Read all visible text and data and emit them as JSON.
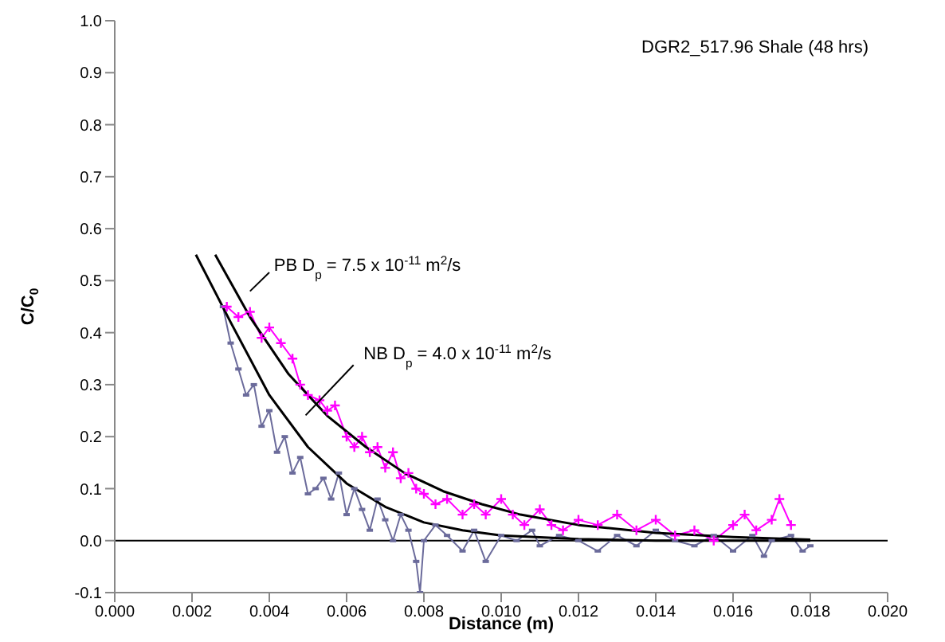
{
  "chart_data": {
    "type": "line",
    "xlabel": "Distance (m)",
    "ylabel": "C/C$_{0}$",
    "annotations": [
      "DGR2_517.96 Shale (48 hrs)",
      "PB D$_{p}$ = 7.5 x 10$^{-11}$ m$^{2}$/s",
      "NB D$_{p}$ = 4.0 x 10$^{-11}$ m$^{2}$/s"
    ],
    "xlim": [
      0,
      0.02
    ],
    "ylim": [
      -0.1,
      1.0
    ],
    "xticks": [
      {
        "value": 0,
        "label": "0.000"
      },
      {
        "value": 0.002,
        "label": "0.002"
      },
      {
        "value": 0.004,
        "label": "0.004"
      },
      {
        "value": 0.006,
        "label": "0.006"
      },
      {
        "value": 0.008,
        "label": "0.008"
      },
      {
        "value": 0.01,
        "label": "0.010"
      },
      {
        "value": 0.012,
        "label": "0.012"
      },
      {
        "value": 0.014,
        "label": "0.014"
      },
      {
        "value": 0.016,
        "label": "0.016"
      },
      {
        "value": 0.018,
        "label": "0.018"
      },
      {
        "value": 0.02,
        "label": "0.020"
      }
    ],
    "yticks": [
      -0.1,
      {
        "value": 0,
        "label": "0.0"
      },
      0.1,
      0.2,
      0.3,
      0.4,
      0.5,
      0.6,
      0.7,
      0.8,
      0.9,
      {
        "value": 1,
        "label": "1.0"
      }
    ],
    "grid": false,
    "legend": false,
    "ref_lines": [
      {
        "axis": "y",
        "value": 0,
        "color": "#000000"
      }
    ],
    "series": [
      {
        "color": "#6b6b9b",
        "marker": "square",
        "x": [
          0.0028,
          0.003,
          0.0032,
          0.0034,
          0.0036,
          0.0038,
          0.004,
          0.0042,
          0.0044,
          0.0046,
          0.0048,
          0.005,
          0.0052,
          0.0054,
          0.0056,
          0.0058,
          0.006,
          0.0062,
          0.0064,
          0.0066,
          0.0068,
          0.007,
          0.0072,
          0.0074,
          0.0076,
          0.0078,
          0.0079,
          0.008,
          0.0083,
          0.0086,
          0.009,
          0.0093,
          0.0096,
          0.01,
          0.0104,
          0.0108,
          0.011,
          0.0115,
          0.012,
          0.0125,
          0.013,
          0.0135,
          0.014,
          0.0145,
          0.015,
          0.0155,
          0.016,
          0.0165,
          0.0168,
          0.017,
          0.0175,
          0.0178,
          0.018
        ],
        "values": [
          0.45,
          0.38,
          0.33,
          0.28,
          0.3,
          0.22,
          0.25,
          0.17,
          0.2,
          0.13,
          0.16,
          0.09,
          0.1,
          0.12,
          0.08,
          0.13,
          0.05,
          0.1,
          0.06,
          0.02,
          0.08,
          0.04,
          0.0,
          0.05,
          0.02,
          -0.04,
          -0.1,
          0.0,
          0.03,
          0.01,
          -0.02,
          0.02,
          -0.04,
          0.01,
          0.0,
          0.02,
          -0.01,
          0.01,
          0.0,
          -0.02,
          0.01,
          -0.01,
          0.02,
          0.0,
          -0.01,
          0.01,
          -0.02,
          0.01,
          -0.03,
          0.0,
          0.01,
          -0.02,
          -0.01
        ]
      },
      {
        "color": "#ff00ff",
        "marker": "cross",
        "x": [
          0.0029,
          0.0032,
          0.0035,
          0.0038,
          0.004,
          0.0043,
          0.0046,
          0.0048,
          0.005,
          0.0053,
          0.0055,
          0.0057,
          0.006,
          0.0062,
          0.0064,
          0.0066,
          0.0068,
          0.007,
          0.0072,
          0.0074,
          0.0076,
          0.0078,
          0.008,
          0.0083,
          0.0086,
          0.009,
          0.0093,
          0.0096,
          0.01,
          0.0103,
          0.0106,
          0.011,
          0.0113,
          0.0116,
          0.012,
          0.0125,
          0.013,
          0.0135,
          0.014,
          0.0145,
          0.015,
          0.0155,
          0.016,
          0.0163,
          0.0166,
          0.017,
          0.0172,
          0.0175
        ],
        "values": [
          0.45,
          0.43,
          0.44,
          0.39,
          0.41,
          0.38,
          0.35,
          0.3,
          0.28,
          0.27,
          0.25,
          0.26,
          0.2,
          0.18,
          0.2,
          0.17,
          0.18,
          0.14,
          0.17,
          0.12,
          0.13,
          0.1,
          0.09,
          0.07,
          0.08,
          0.05,
          0.07,
          0.05,
          0.08,
          0.05,
          0.03,
          0.06,
          0.03,
          0.02,
          0.04,
          0.03,
          0.05,
          0.02,
          0.04,
          0.01,
          0.02,
          0.0,
          0.03,
          0.05,
          0.02,
          0.04,
          0.08,
          0.03
        ]
      },
      {
        "color": "#000000",
        "marker": "none",
        "x": [
          0.0021,
          0.003,
          0.004,
          0.005,
          0.006,
          0.007,
          0.008,
          0.009,
          0.01,
          0.012,
          0.014,
          0.018
        ],
        "values": [
          0.55,
          0.42,
          0.28,
          0.18,
          0.11,
          0.065,
          0.035,
          0.02,
          0.01,
          0.003,
          0.0,
          0.0
        ]
      },
      {
        "color": "#000000",
        "marker": "none",
        "x": [
          0.0026,
          0.0035,
          0.0045,
          0.0055,
          0.0065,
          0.0075,
          0.0085,
          0.0095,
          0.0105,
          0.012,
          0.014,
          0.016,
          0.018
        ],
        "values": [
          0.55,
          0.43,
          0.32,
          0.24,
          0.18,
          0.13,
          0.095,
          0.07,
          0.05,
          0.03,
          0.015,
          0.007,
          0.002
        ]
      }
    ]
  }
}
